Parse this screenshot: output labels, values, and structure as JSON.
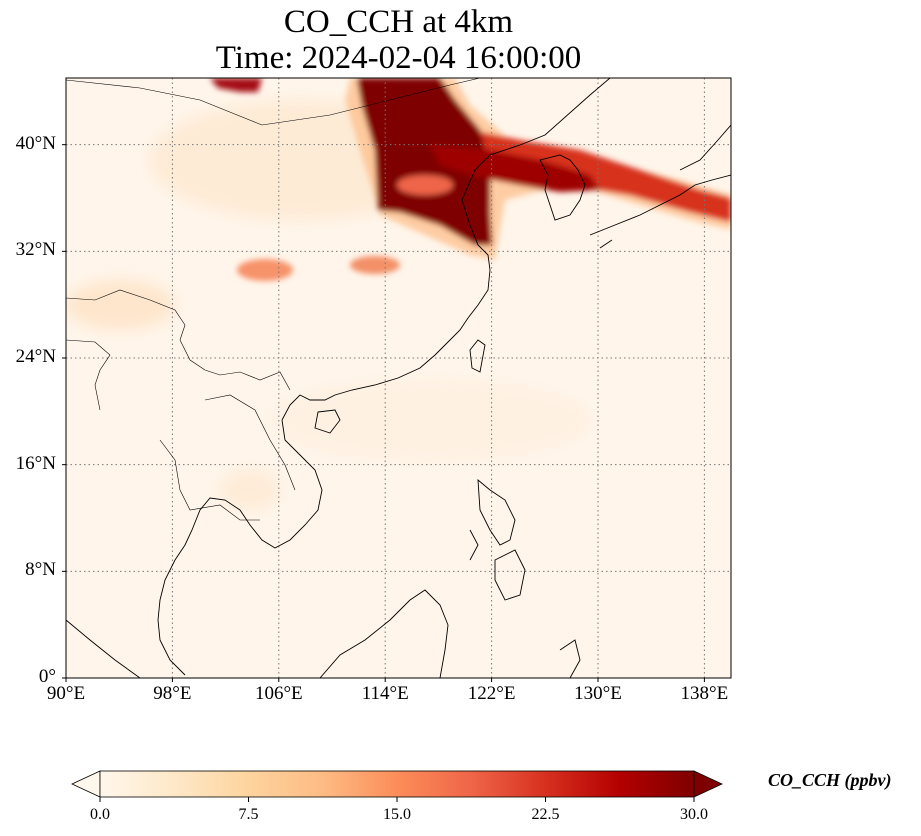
{
  "title": {
    "line1": "CO_CCH at 4km",
    "line2": "Time: 2024-02-04 16:00:00"
  },
  "map": {
    "lon_range": [
      90,
      140
    ],
    "lat_range": [
      0,
      45
    ],
    "gridlines": true,
    "lat_ticks": [
      {
        "value": 40,
        "label": "40°N"
      },
      {
        "value": 32,
        "label": "32°N"
      },
      {
        "value": 24,
        "label": "24°N"
      },
      {
        "value": 16,
        "label": "16°N"
      },
      {
        "value": 8,
        "label": "8°N"
      },
      {
        "value": 0,
        "label": "0°"
      }
    ],
    "lon_ticks": [
      {
        "value": 90,
        "label": "90°E"
      },
      {
        "value": 98,
        "label": "98°E"
      },
      {
        "value": 106,
        "label": "106°E"
      },
      {
        "value": 114,
        "label": "114°E"
      },
      {
        "value": 122,
        "label": "122°E"
      },
      {
        "value": 130,
        "label": "130°E"
      },
      {
        "value": 138,
        "label": "138°E"
      }
    ],
    "colormap": "OrRd",
    "plume_regions": [
      {
        "name": "northern-china-core",
        "lon_min": 113.5,
        "lon_max": 122,
        "lat_min": 33,
        "lat_max": 45,
        "value": 30
      },
      {
        "name": "mongolia-patch",
        "lon_min": 101.5,
        "lon_max": 104.5,
        "lat_min": 43.5,
        "lat_max": 45,
        "value": 30
      },
      {
        "name": "korea-japan-band",
        "lon_min": 118,
        "lon_max": 140,
        "lat_min": 35,
        "lat_max": 40,
        "value": 24
      },
      {
        "name": "sichuan-patch",
        "lon_min": 103.5,
        "lon_max": 107.5,
        "lat_min": 29.5,
        "lat_max": 31.5,
        "value": 14
      },
      {
        "name": "central-patch",
        "lon_min": 112,
        "lon_max": 116,
        "lat_min": 30,
        "lat_max": 31.5,
        "value": 16
      }
    ]
  },
  "colorbar": {
    "label": "CO_CCH (ppbv)",
    "min": 0.0,
    "max": 30.0,
    "extend": "both",
    "ticks": [
      "0.0",
      "7.5",
      "15.0",
      "22.5",
      "30.0"
    ],
    "colors": [
      "#fff7ec",
      "#fee8c8",
      "#fdd49e",
      "#fdbb84",
      "#fc8d59",
      "#ef6548",
      "#d7301f",
      "#b30000",
      "#7f0000"
    ]
  }
}
